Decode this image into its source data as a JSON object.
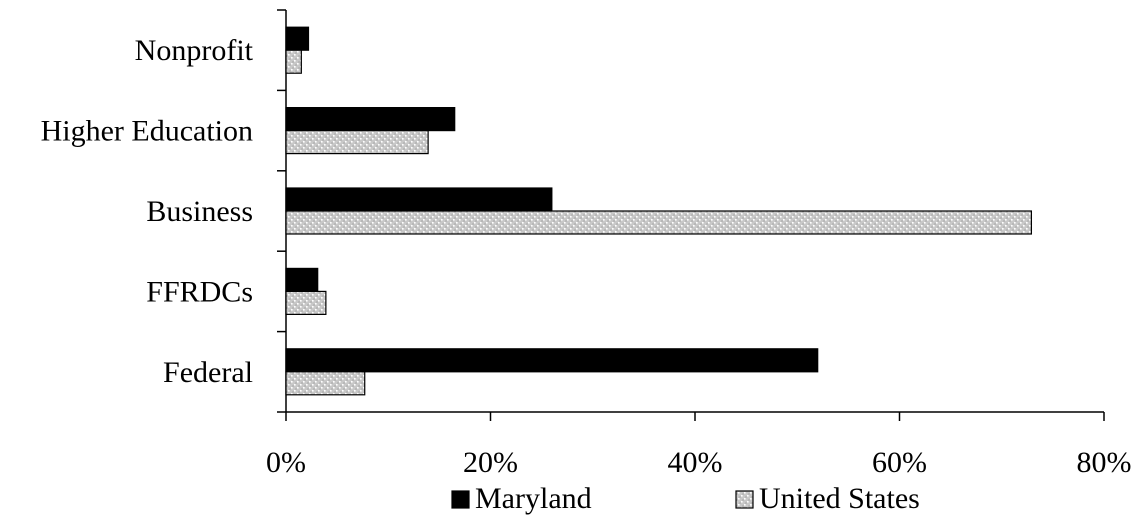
{
  "chart_data": {
    "type": "bar",
    "orientation": "horizontal",
    "categories": [
      "Nonprofit",
      "Higher Education",
      "Business",
      "FFRDCs",
      "Federal"
    ],
    "series": [
      {
        "name": "Maryland",
        "values": [
          2.2,
          16.5,
          26.0,
          3.1,
          52.0
        ],
        "color": "#000000",
        "pattern": "solid"
      },
      {
        "name": "United States",
        "values": [
          1.5,
          13.9,
          72.9,
          3.9,
          7.7
        ],
        "color": "#d9d9d9",
        "pattern": "light-dotted"
      }
    ],
    "xlim": [
      0,
      80
    ],
    "xticks": [
      0,
      20,
      40,
      60,
      80
    ],
    "xtick_labels": [
      "0%",
      "20%",
      "40%",
      "60%",
      "80%"
    ],
    "title": "",
    "xlabel": "",
    "ylabel": "",
    "grid": false,
    "legend": "bottom"
  }
}
